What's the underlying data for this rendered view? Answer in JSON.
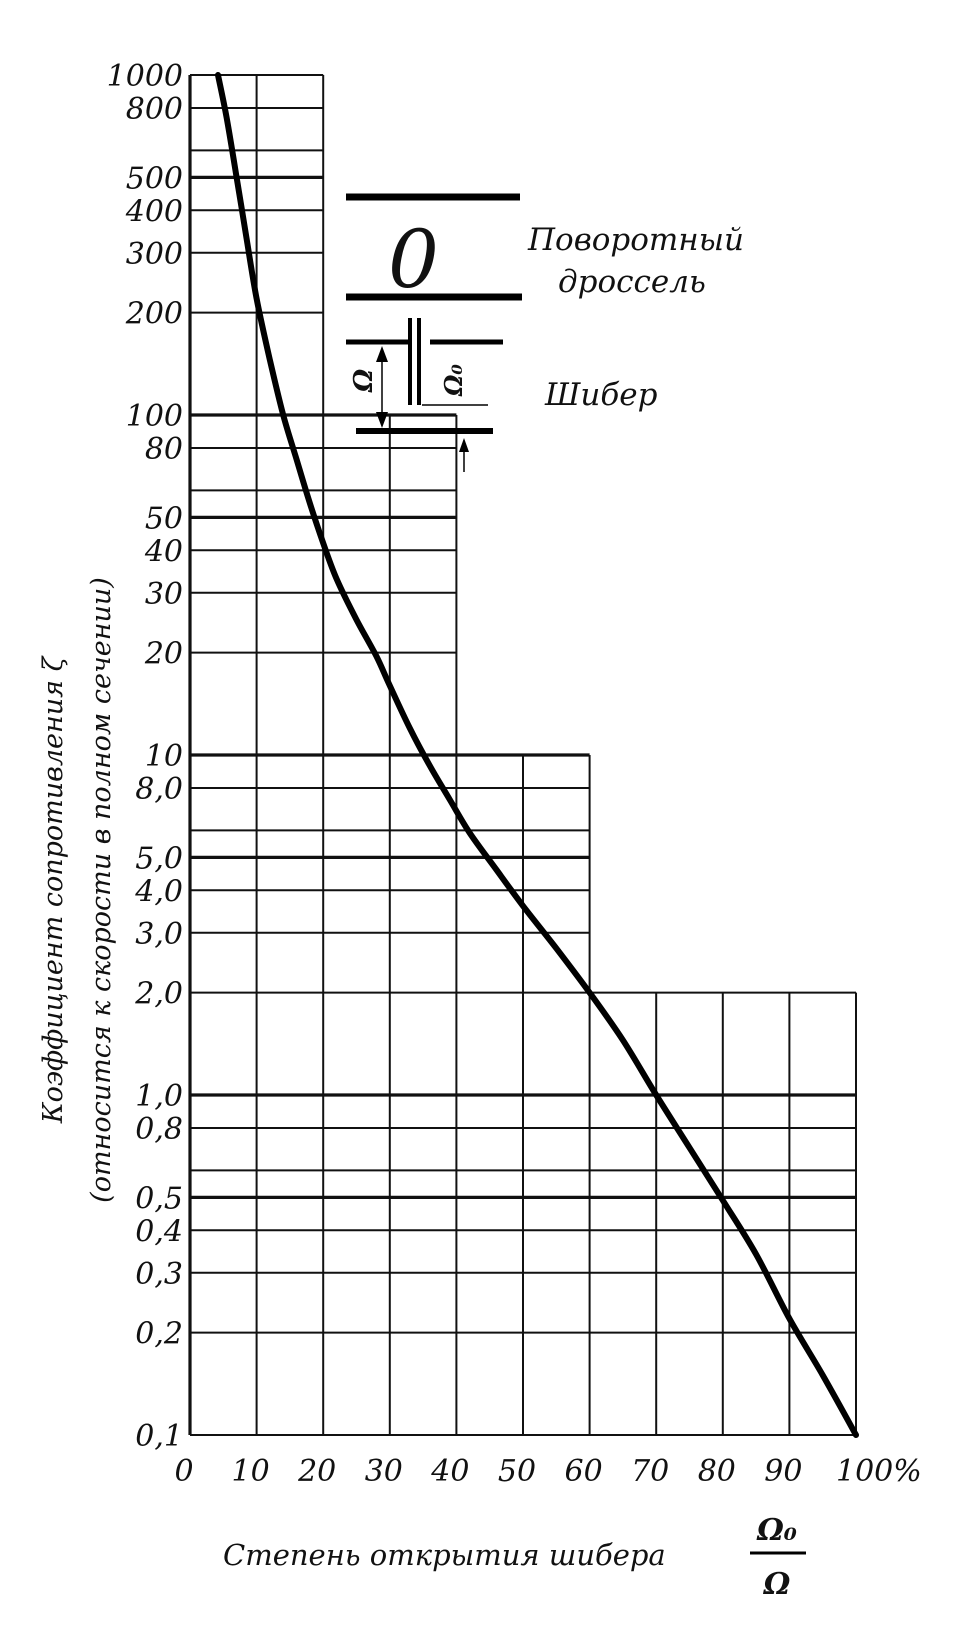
{
  "chart_data": {
    "type": "line",
    "title": "",
    "ylabel_line1": "Коэффициент сопротивления ζ",
    "ylabel_line2": "(относится к скорости в полном сечении)",
    "xlabel_text": "Степень открытия шибера",
    "xlabel_fraction_num": "Ω₀",
    "xlabel_fraction_den": "Ω",
    "y_scale": "log",
    "ylim": [
      0.1,
      1000
    ],
    "xlim": [
      0,
      100
    ],
    "grid": true,
    "y_tick_labels": [
      {
        "v": 1000,
        "label": "1000"
      },
      {
        "v": 800,
        "label": "800"
      },
      {
        "v": 500,
        "label": "500"
      },
      {
        "v": 400,
        "label": "400"
      },
      {
        "v": 300,
        "label": "300"
      },
      {
        "v": 200,
        "label": "200"
      },
      {
        "v": 100,
        "label": "100"
      },
      {
        "v": 80,
        "label": "80"
      },
      {
        "v": 50,
        "label": "50"
      },
      {
        "v": 40,
        "label": "40"
      },
      {
        "v": 30,
        "label": "30"
      },
      {
        "v": 20,
        "label": "20"
      },
      {
        "v": 10,
        "label": "10"
      },
      {
        "v": 8,
        "label": "8,0"
      },
      {
        "v": 5,
        "label": "5,0"
      },
      {
        "v": 4,
        "label": "4,0"
      },
      {
        "v": 3,
        "label": "3,0"
      },
      {
        "v": 2,
        "label": "2,0"
      },
      {
        "v": 1,
        "label": "1,0"
      },
      {
        "v": 0.8,
        "label": "0,8"
      },
      {
        "v": 0.5,
        "label": "0,5"
      },
      {
        "v": 0.4,
        "label": "0,4"
      },
      {
        "v": 0.3,
        "label": "0,3"
      },
      {
        "v": 0.2,
        "label": "0,2"
      },
      {
        "v": 0.1,
        "label": "0,1"
      }
    ],
    "x_tick_labels": [
      {
        "v": 0,
        "label": "0"
      },
      {
        "v": 10,
        "label": "10"
      },
      {
        "v": 20,
        "label": "20"
      },
      {
        "v": 30,
        "label": "30"
      },
      {
        "v": 40,
        "label": "40"
      },
      {
        "v": 50,
        "label": "50"
      },
      {
        "v": 60,
        "label": "60"
      },
      {
        "v": 70,
        "label": "70"
      },
      {
        "v": 80,
        "label": "80"
      },
      {
        "v": 90,
        "label": "90"
      },
      {
        "v": 100,
        "label": "100%"
      }
    ],
    "grid_bands": [
      {
        "ymin": 100,
        "ymax": 1000,
        "xmax": 20
      },
      {
        "ymin": 10,
        "ymax": 100,
        "xmax": 40
      },
      {
        "ymin": 2,
        "ymax": 10,
        "xmax": 60
      },
      {
        "ymin": 0.1,
        "ymax": 2,
        "xmax": 100
      }
    ],
    "gridlines_y": [
      1000,
      800,
      600,
      500,
      400,
      300,
      200,
      100,
      80,
      60,
      50,
      40,
      30,
      20,
      10,
      8,
      6,
      5,
      4,
      3,
      2,
      1,
      0.8,
      0.6,
      0.5,
      0.4,
      0.3,
      0.2,
      0.1
    ],
    "gridlines_y_major": [
      500,
      100,
      50,
      10,
      5,
      1,
      0.5
    ],
    "series": [
      {
        "x": [
          4.2,
          5.5,
          7,
          8.5,
          10,
          12,
          14,
          16,
          18,
          20,
          22,
          25,
          28,
          30,
          33,
          36,
          39,
          42,
          46,
          50,
          55,
          60,
          65,
          70,
          75,
          80,
          85,
          90,
          95,
          100
        ],
        "y": [
          1000,
          750,
          500,
          330,
          220,
          145,
          100,
          74,
          55,
          42,
          33,
          25,
          19.5,
          16,
          12,
          9.3,
          7.4,
          5.9,
          4.6,
          3.6,
          2.7,
          2.0,
          1.45,
          1.0,
          0.7,
          0.49,
          0.34,
          0.22,
          0.15,
          0.1
        ]
      }
    ]
  },
  "inset": {
    "label_butterfly": [
      "Поворотный",
      "дроссель"
    ],
    "butterfly_symbol": "0",
    "label_gate": "Шибер",
    "omega": "Ω",
    "omega0": "Ω₀"
  }
}
